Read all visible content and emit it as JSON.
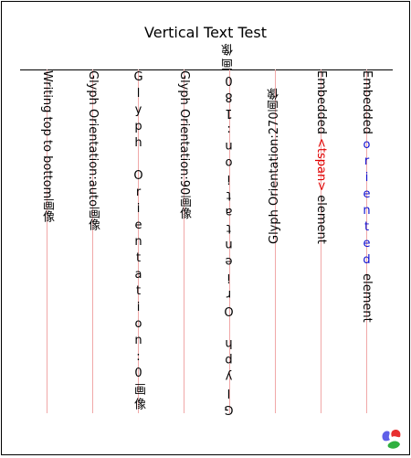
{
  "title": "Vertical Text Test",
  "columns": {
    "c1": "Writing top to bottom画像",
    "c2": "Glyph Orientation:auto画像",
    "c3": "Glyph Orientation:0画像",
    "c4": "Glyph Orientation:90画像",
    "c5": "Glyph Orientation:180画像",
    "c6": "Glyph Orientation:270画像",
    "c7": {
      "pre": "Embedded ",
      "span": "<tspan>",
      "post": " element"
    },
    "c8": {
      "pre": "Embedded ",
      "span": "oriented",
      "post": " element"
    }
  },
  "colors": {
    "guide": "#f0a8a8",
    "tspan": "#e00000",
    "oriented": "#1010d0"
  },
  "icons": {
    "logo": "svg-logo-icon"
  }
}
